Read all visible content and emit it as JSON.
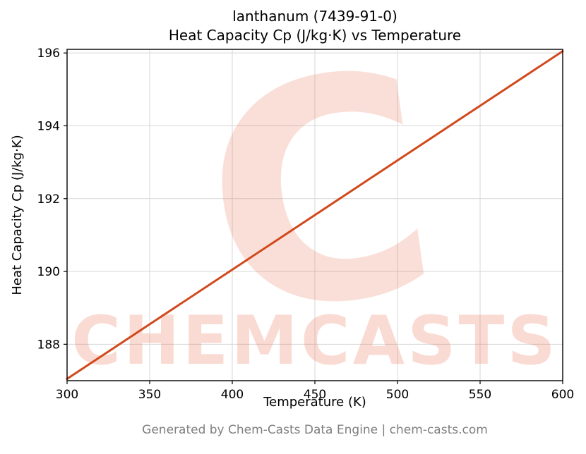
{
  "chart_data": {
    "type": "line",
    "title": "lanthanum (7439-91-0)",
    "subtitle": "Heat Capacity Cp (J/kg·K) vs Temperature",
    "xlabel": "Temperature (K)",
    "ylabel": "Heat Capacity Cp (J/kg·K)",
    "xlim": [
      300,
      600
    ],
    "ylim": [
      187.0,
      196.1
    ],
    "xticks": [
      300,
      350,
      400,
      450,
      500,
      550,
      600
    ],
    "yticks": [
      188,
      190,
      192,
      194,
      196
    ],
    "grid": true,
    "legend": "none",
    "series": [
      {
        "name": "Heat Capacity Cp",
        "x": [
          300,
          600
        ],
        "y": [
          187.05,
          196.05
        ],
        "color": "#d1491c",
        "width": 3
      }
    ]
  },
  "watermark": {
    "text": "CHEMCASTS",
    "logo_glyph": "C",
    "color": "#e8603c",
    "opacity": 0.22
  },
  "footer": {
    "text": "Generated by Chem-Casts Data Engine | chem-casts.com"
  }
}
